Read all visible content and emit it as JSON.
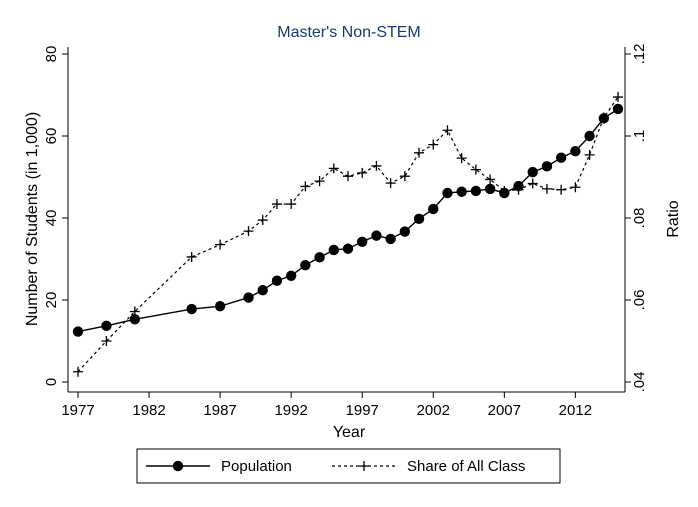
{
  "chart_data": {
    "type": "line",
    "title": "Master's Non-STEM",
    "xlabel": "Year",
    "ylabel": "Number of Students (in 1,000)",
    "y2label": "Ratio",
    "xlim": [
      1977,
      2015
    ],
    "ylim": [
      0,
      80
    ],
    "y2lim": [
      0.04,
      0.12
    ],
    "x_ticks": [
      1977,
      1982,
      1987,
      1992,
      1997,
      2002,
      2007,
      2012
    ],
    "y_ticks": [
      0,
      20,
      40,
      60,
      80
    ],
    "y2_ticks": [
      0.04,
      0.06,
      0.08,
      0.1,
      0.12
    ],
    "y2_tick_labels": [
      ".04",
      ".06",
      ".08",
      ".1",
      ".12"
    ],
    "grid": false,
    "legend_placement": "bottom",
    "series": [
      {
        "name": "Population",
        "axis": "left",
        "style": "solid-circle",
        "color": "#000000",
        "x": [
          1977,
          1979,
          1981,
          1985,
          1987,
          1989,
          1990,
          1991,
          1992,
          1993,
          1994,
          1995,
          1996,
          1997,
          1998,
          1999,
          2000,
          2001,
          2002,
          2003,
          2004,
          2005,
          2006,
          2007,
          2008,
          2009,
          2010,
          2011,
          2012,
          2013,
          2014,
          2015
        ],
        "values": [
          12.3,
          13.7,
          15.3,
          17.8,
          18.5,
          20.6,
          22.4,
          24.7,
          25.9,
          28.5,
          30.4,
          32.2,
          32.5,
          34.2,
          35.7,
          34.9,
          36.7,
          39.8,
          42.2,
          46.1,
          46.4,
          46.6,
          47.1,
          46.1,
          47.8,
          51.2,
          52.6,
          54.7,
          56.3,
          60.0,
          64.3,
          66.6
        ]
      },
      {
        "name": "Share of All Class",
        "axis": "right",
        "style": "dashed-plus",
        "color": "#000000",
        "x": [
          1977,
          1979,
          1981,
          1985,
          1987,
          1989,
          1990,
          1991,
          1992,
          1993,
          1994,
          1995,
          1996,
          1997,
          1998,
          1999,
          2000,
          2001,
          2002,
          2003,
          2004,
          2005,
          2006,
          2007,
          2008,
          2009,
          2010,
          2011,
          2012,
          2013,
          2014,
          2015
        ],
        "values": [
          0.0425,
          0.05,
          0.0572,
          0.0705,
          0.0735,
          0.0768,
          0.0795,
          0.0834,
          0.0834,
          0.0877,
          0.089,
          0.0921,
          0.0902,
          0.091,
          0.0927,
          0.0885,
          0.0902,
          0.0959,
          0.0979,
          0.1014,
          0.0946,
          0.0918,
          0.0894,
          0.0866,
          0.0869,
          0.0884,
          0.0871,
          0.0869,
          0.0875,
          0.0954,
          0.1045,
          0.1095
        ]
      }
    ]
  }
}
